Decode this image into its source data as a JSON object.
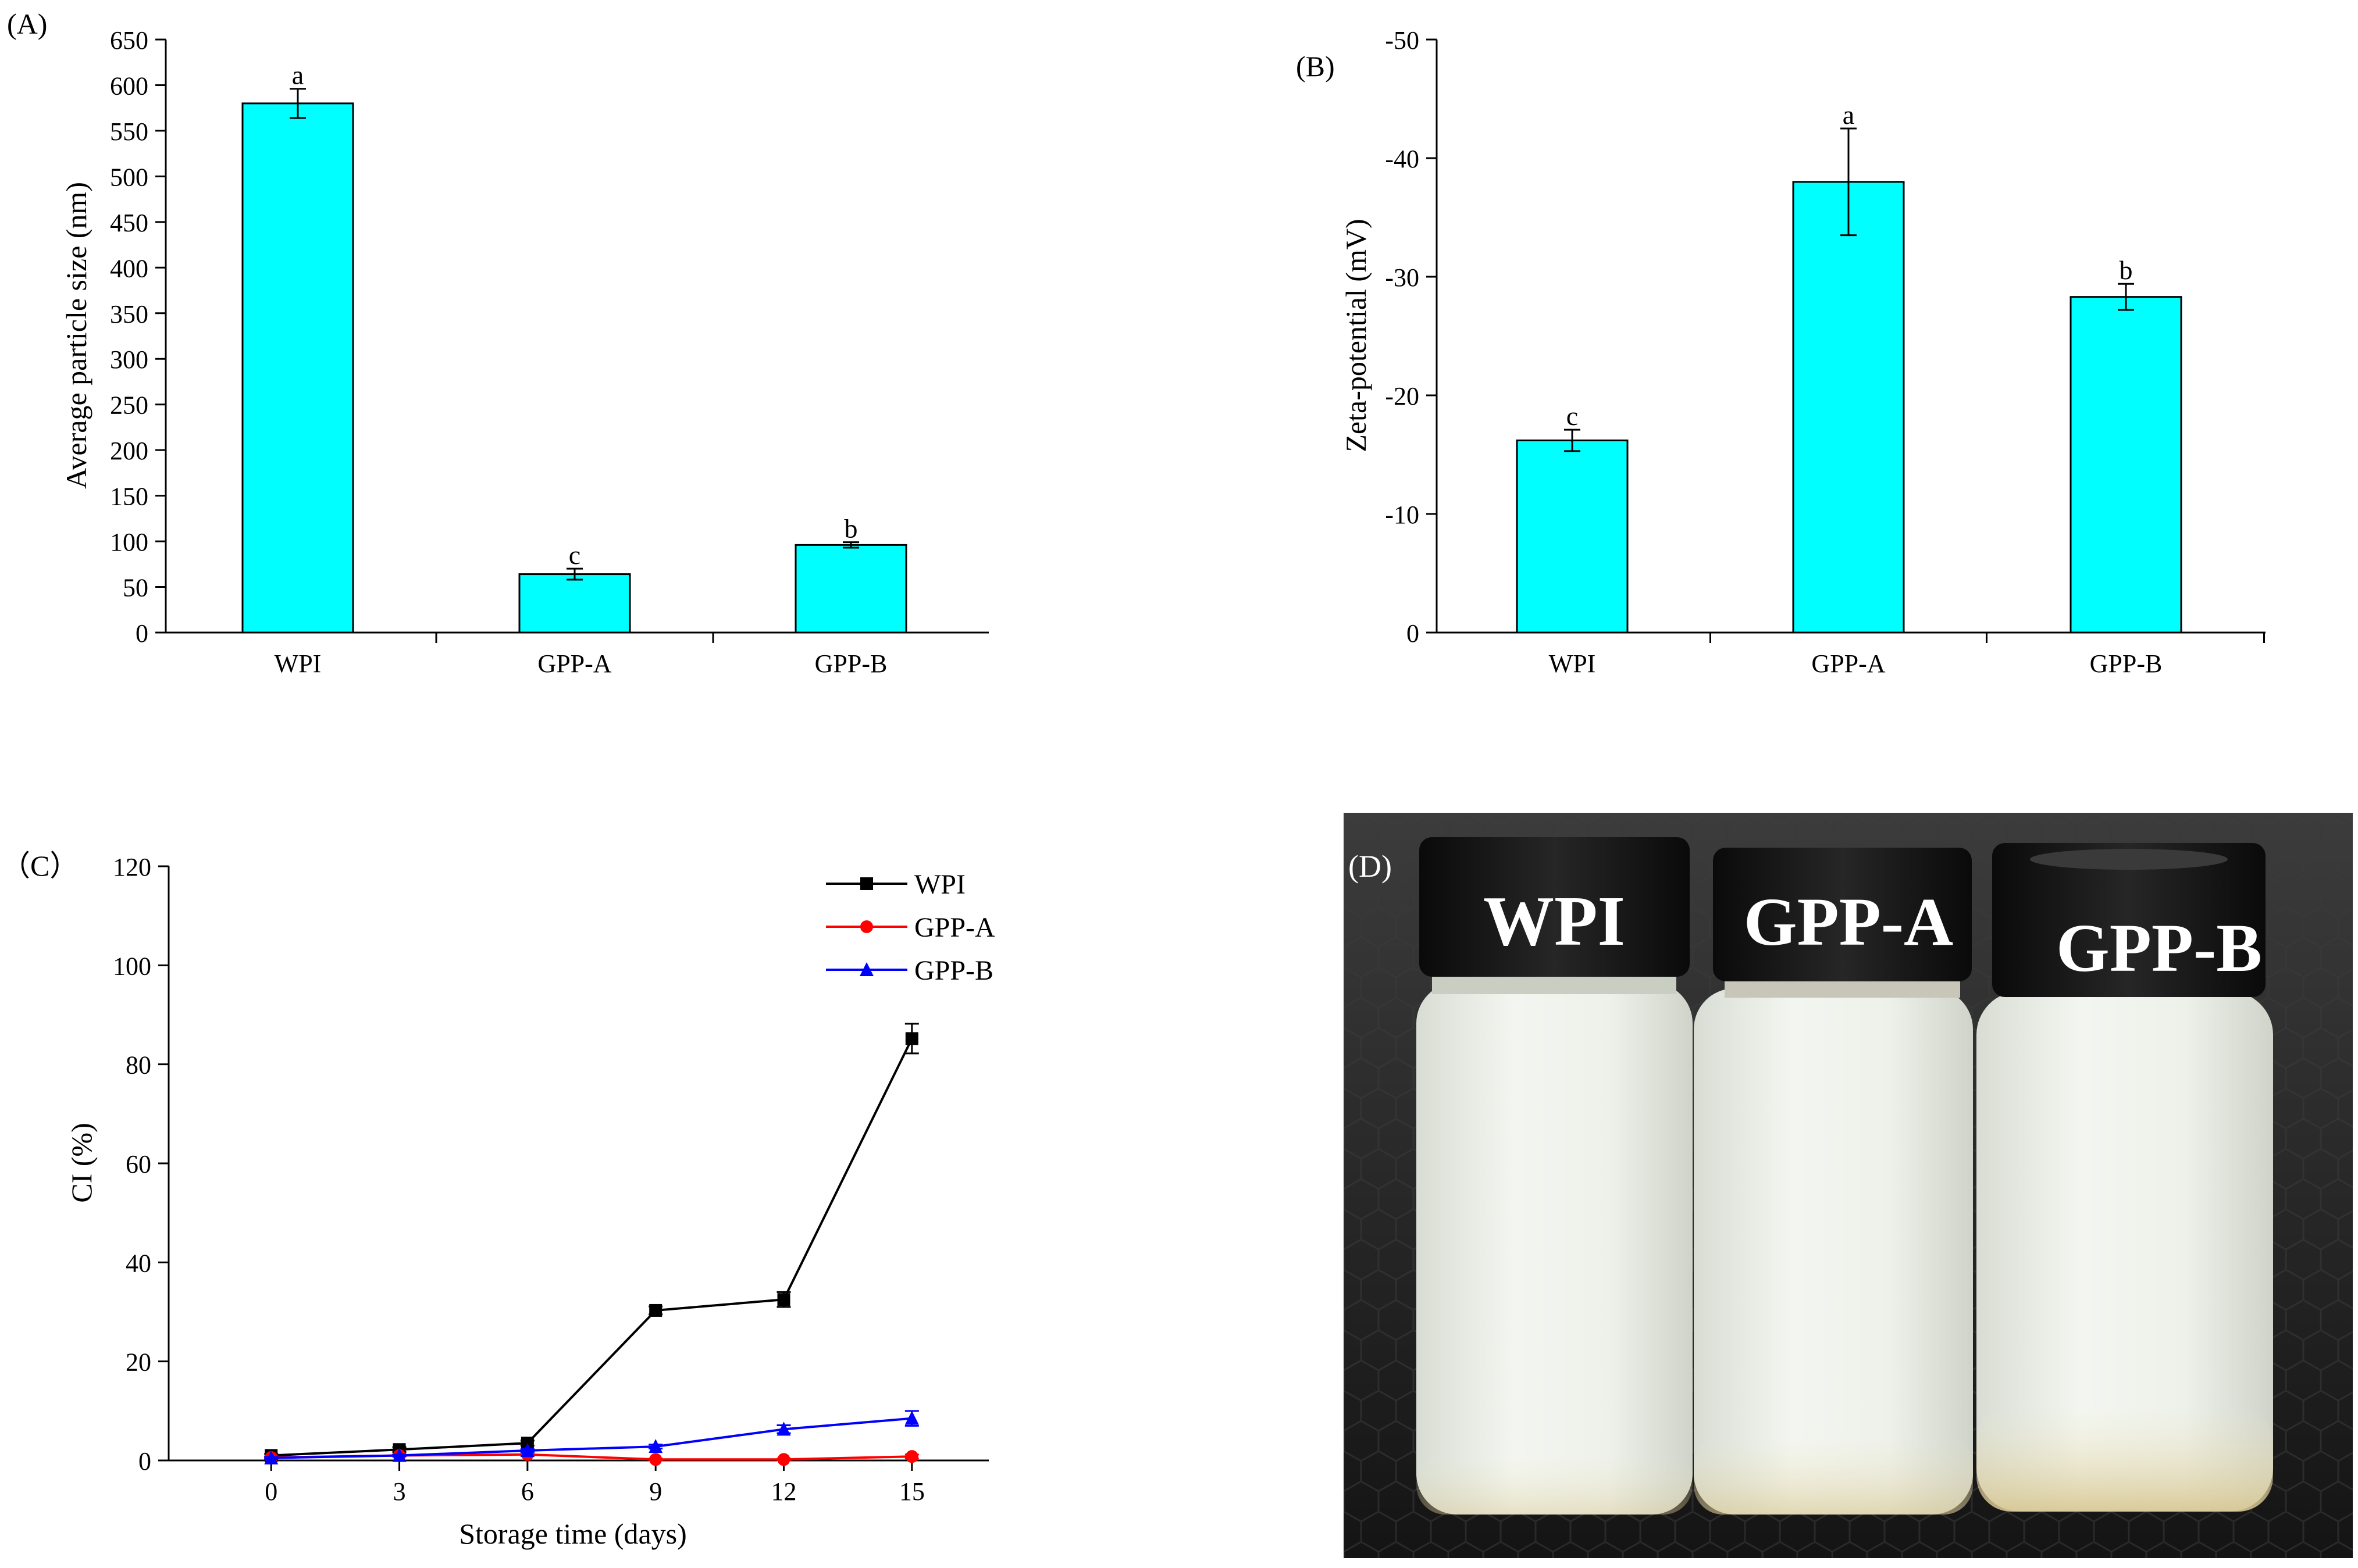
{
  "chart_data": [
    {
      "panel": "(A)",
      "type": "bar",
      "categories": [
        "WPI",
        "GPP-A",
        "GPP-B"
      ],
      "values": [
        580,
        64,
        96
      ],
      "errors": [
        16,
        6,
        3
      ],
      "letters": [
        "a",
        "c",
        "b"
      ],
      "ylabel": "Average particle size (nm)",
      "xlabel": "",
      "ylim": [
        0,
        650
      ],
      "yticks": [
        0,
        50,
        100,
        150,
        200,
        250,
        300,
        350,
        400,
        450,
        500,
        550,
        600,
        650
      ],
      "bar_color": "#00FFFF"
    },
    {
      "panel": "(B)",
      "type": "bar",
      "categories": [
        "WPI",
        "GPP-A",
        "GPP-B"
      ],
      "values": [
        -16.2,
        -38.0,
        -28.3
      ],
      "errors": [
        0.9,
        4.5,
        1.1
      ],
      "letters": [
        "c",
        "a",
        "b"
      ],
      "ylabel": "Zeta-potential (mV)",
      "xlabel": "",
      "ylim": [
        0,
        -50
      ],
      "yticks": [
        0,
        -10,
        -20,
        -30,
        -40,
        -50
      ],
      "bar_color": "#00FFFF"
    },
    {
      "panel": "（C）",
      "type": "line",
      "x": [
        0,
        3,
        6,
        9,
        12,
        15
      ],
      "xticks": [
        0,
        3,
        6,
        9,
        12,
        15
      ],
      "xlabel": "Storage time (days)",
      "ylabel": "CI (%)",
      "ylim": [
        0,
        120
      ],
      "yticks": [
        0,
        20,
        40,
        60,
        80,
        100,
        120
      ],
      "legend_position": "top-right",
      "series": [
        {
          "name": "WPI",
          "color": "#000000",
          "marker": "square",
          "values": [
            1.0,
            2.2,
            3.5,
            30.3,
            32.5,
            85.2
          ],
          "errors": [
            0.3,
            0.5,
            0.5,
            0.8,
            1.5,
            3.0
          ]
        },
        {
          "name": "GPP-A",
          "color": "#FF0000",
          "marker": "circle",
          "values": [
            0.6,
            1.0,
            1.2,
            0.2,
            0.2,
            0.8
          ],
          "errors": [
            0.2,
            0.2,
            0.3,
            0.2,
            0.2,
            0.4
          ]
        },
        {
          "name": "GPP-B",
          "color": "#0000FF",
          "marker": "triangle",
          "values": [
            0.5,
            1.0,
            2.0,
            2.8,
            6.3,
            8.5
          ],
          "errors": [
            0.2,
            0.2,
            0.3,
            0.4,
            0.8,
            1.5
          ]
        }
      ]
    }
  ],
  "photo": {
    "panel": "(D)",
    "labels": [
      "WPI",
      "GPP-A",
      "GPP-B"
    ]
  }
}
